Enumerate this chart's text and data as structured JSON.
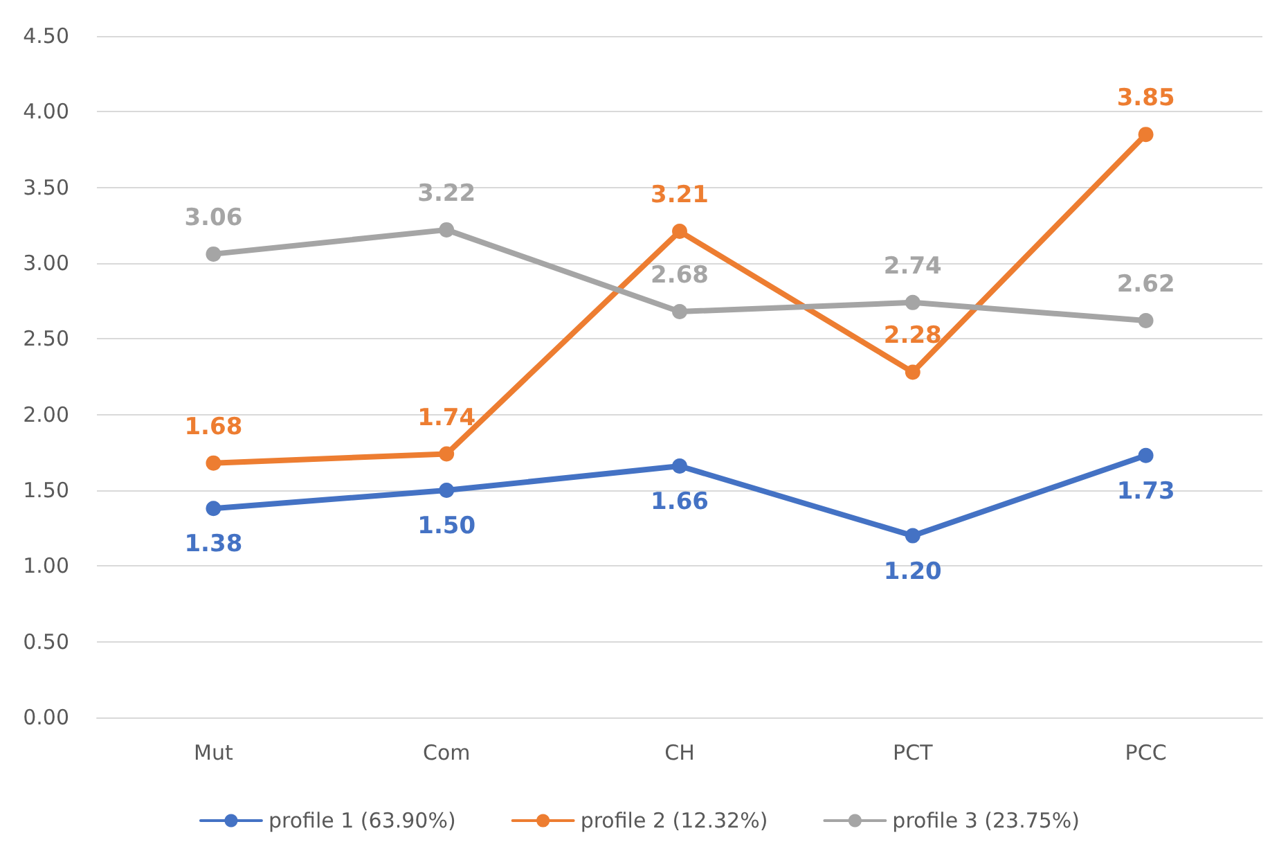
{
  "chart_data": {
    "type": "line",
    "categories": [
      "Mut",
      "Com",
      "CH",
      "PCT",
      "PCC"
    ],
    "series": [
      {
        "name": "profile 1 (63.90%)",
        "color": "#4472c4",
        "values": [
          1.38,
          1.5,
          1.66,
          1.2,
          1.73
        ],
        "value_labels": [
          "1.38",
          "1.50",
          "1.66",
          "1.20",
          "1.73"
        ]
      },
      {
        "name": "profile 2 (12.32%)",
        "color": "#ed7d31",
        "values": [
          1.68,
          1.74,
          3.21,
          2.28,
          3.85
        ],
        "value_labels": [
          "1.68",
          "1.74",
          "3.21",
          "2.28",
          "3.85"
        ]
      },
      {
        "name": "profile 3 (23.75%)",
        "color": "#a5a5a5",
        "values": [
          3.06,
          3.22,
          2.68,
          2.74,
          2.62
        ],
        "value_labels": [
          "3.06",
          "3.22",
          "2.68",
          "2.74",
          "2.62"
        ]
      }
    ],
    "ylim": [
      0,
      4.5
    ],
    "yticks": [
      {
        "value": 0,
        "label": "0.00"
      },
      {
        "value": 0.5,
        "label": "0.50"
      },
      {
        "value": 1,
        "label": "1.00"
      },
      {
        "value": 1.5,
        "label": "1.50"
      },
      {
        "value": 2,
        "label": "2.00"
      },
      {
        "value": 2.5,
        "label": "2.50"
      },
      {
        "value": 3,
        "label": "3.00"
      },
      {
        "value": 3.5,
        "label": "3.50"
      },
      {
        "value": 4,
        "label": "4.00"
      },
      {
        "value": 4.5,
        "label": "4.50"
      }
    ],
    "grid": "y",
    "legend": "bottom",
    "marker": "circle",
    "line_style": "solid"
  }
}
